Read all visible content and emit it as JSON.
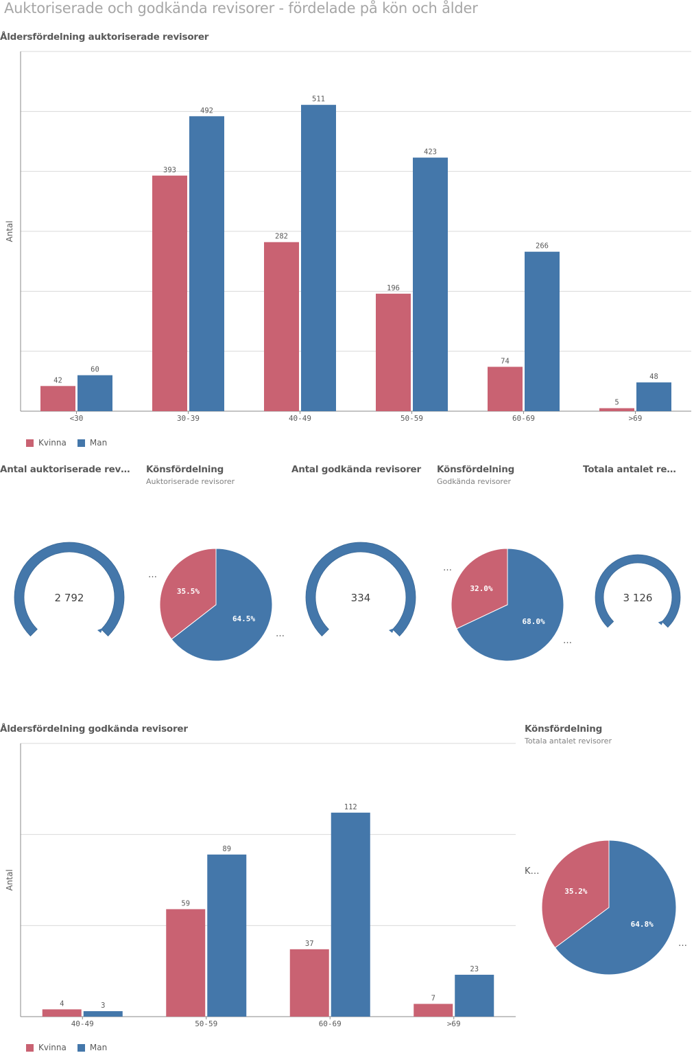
{
  "page_title": "Auktoriserade och godkända revisorer - fördelade på kön och ålder",
  "colors": {
    "kvinna": "#c96272",
    "man": "#4477aa",
    "grid": "#d9d9d9",
    "axis": "#888888"
  },
  "chart1": {
    "title": "Åldersfördelning auktoriserade revisorer",
    "chart_data": {
      "type": "bar",
      "categories": [
        "<30",
        "30-39",
        "40-49",
        "50-59",
        "60-69",
        ">69"
      ],
      "series": [
        {
          "name": "Kvinna",
          "values": [
            42,
            393,
            282,
            196,
            74,
            5
          ]
        },
        {
          "name": "Man",
          "values": [
            60,
            492,
            511,
            423,
            266,
            48
          ]
        }
      ],
      "ylabel": "Antal",
      "ylim": [
        0,
        600
      ],
      "grid": true,
      "legend": "bottom-left"
    }
  },
  "chart2": {
    "title": "Åldersfördelning godkända revisorer",
    "chart_data": {
      "type": "bar",
      "categories": [
        "40-49",
        "50-59",
        "60-69",
        ">69"
      ],
      "series": [
        {
          "name": "Kvinna",
          "values": [
            4,
            59,
            37,
            7
          ]
        },
        {
          "name": "Man",
          "values": [
            3,
            89,
            112,
            23
          ]
        }
      ],
      "ylabel": "Antal",
      "ylim": [
        0,
        150
      ],
      "grid": true,
      "legend": "bottom-left"
    }
  },
  "legend": {
    "kvinna": "Kvinna",
    "man": "Man"
  },
  "kpi1": {
    "title": "Antal auktoriserade rev…",
    "value": "2 792"
  },
  "kpi2": {
    "title": "Antal godkända revisorer",
    "value": "334"
  },
  "kpi3": {
    "title": "Totala antalet re…",
    "value": "3 126"
  },
  "pie1": {
    "title": "Könsfördelning",
    "subtitle": "Auktoriserade revisorer",
    "chart_data": {
      "type": "pie",
      "slices": [
        {
          "name": "Kvinna",
          "value": 35.5,
          "label": "35.5%"
        },
        {
          "name": "Man",
          "value": 64.5,
          "label": "64.5%"
        }
      ]
    },
    "ellipsis": "…"
  },
  "pie2": {
    "title": "Könsfördelning",
    "subtitle": "Godkända revisorer",
    "chart_data": {
      "type": "pie",
      "slices": [
        {
          "name": "Kvinna",
          "value": 32.0,
          "label": "32.0%"
        },
        {
          "name": "Man",
          "value": 68.0,
          "label": "68.0%"
        }
      ]
    },
    "ellipsis": "…"
  },
  "pie3": {
    "title": "Könsfördelning",
    "subtitle": "Totala antalet revisorer",
    "chart_data": {
      "type": "pie",
      "slices": [
        {
          "name": "Kvinna",
          "value": 35.2,
          "label": "35.2%"
        },
        {
          "name": "Man",
          "value": 64.8,
          "label": "64.8%"
        }
      ]
    },
    "ellipsis": "…",
    "side_label": "K…"
  },
  "misc": {
    "ellipsis": "…"
  }
}
